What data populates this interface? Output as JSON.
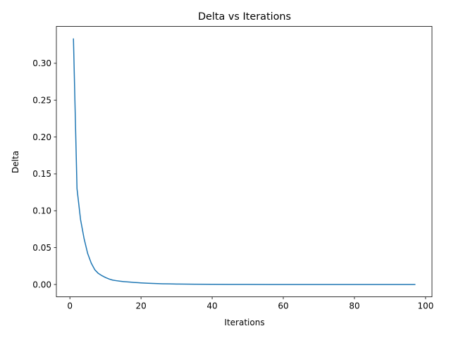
{
  "chart_data": {
    "type": "line",
    "title": "Delta vs Iterations",
    "xlabel": "Iterations",
    "ylabel": "Delta",
    "xlim": [
      -3.8,
      101.8
    ],
    "ylim": [
      -0.0167,
      0.35
    ],
    "xticks": [
      0,
      20,
      40,
      60,
      80,
      100
    ],
    "yticks": [
      0.0,
      0.05,
      0.1,
      0.15,
      0.2,
      0.25,
      0.3
    ],
    "ytick_labels": [
      "0.00",
      "0.05",
      "0.10",
      "0.15",
      "0.20",
      "0.25",
      "0.30"
    ],
    "grid": false,
    "legend": "none",
    "series": [
      {
        "color": "#1f77b4",
        "x": [
          1,
          2,
          3,
          4,
          5,
          6,
          7,
          8,
          9,
          10,
          11,
          12,
          13,
          14,
          15,
          16,
          17,
          18,
          19,
          20,
          22,
          24,
          26,
          28,
          30,
          35,
          40,
          45,
          50,
          60,
          70,
          80,
          90,
          97
        ],
        "y": [
          0.333,
          0.13,
          0.088,
          0.062,
          0.042,
          0.029,
          0.02,
          0.015,
          0.012,
          0.0095,
          0.0075,
          0.006,
          0.0052,
          0.0045,
          0.004,
          0.0036,
          0.0032,
          0.0028,
          0.0025,
          0.0022,
          0.0017,
          0.0013,
          0.001,
          0.0008,
          0.0006,
          0.0004,
          0.0002,
          0.0001,
          8e-05,
          4e-05,
          2e-05,
          1e-05,
          5e-06,
          3e-06
        ]
      }
    ]
  }
}
